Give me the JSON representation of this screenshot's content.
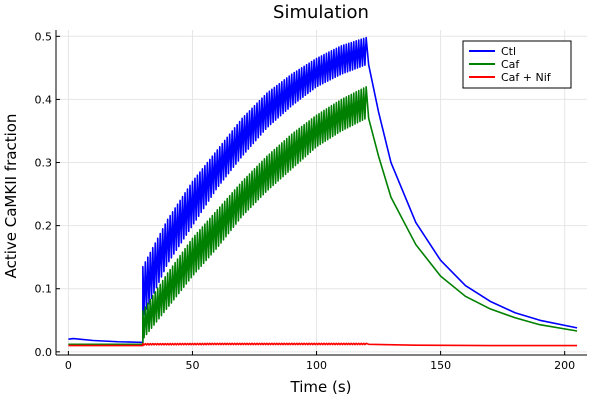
{
  "chart_data": {
    "type": "line",
    "title": "Simulation",
    "xlabel": "Time (s)",
    "ylabel": "Active CaMKII fraction",
    "xlim": [
      -5,
      209
    ],
    "ylim": [
      -0.005,
      0.51
    ],
    "xticks": [
      0,
      50,
      100,
      150,
      200
    ],
    "yticks": [
      0.0,
      0.1,
      0.2,
      0.3,
      0.4,
      0.5
    ],
    "ytick_labels": [
      "0.0",
      "0.1",
      "0.2",
      "0.3",
      "0.4",
      "0.5"
    ],
    "grid": true,
    "legend_position": "top-right",
    "series": [
      {
        "name": "Ctl",
        "color": "#0000ff",
        "baseline": [
          [
            0,
            0.02
          ],
          [
            2,
            0.021
          ],
          [
            10,
            0.018
          ],
          [
            20,
            0.016
          ],
          [
            30,
            0.015
          ]
        ],
        "pulse_window": [
          30,
          120
        ],
        "pulse_upper": [
          [
            30,
            0.135
          ],
          [
            40,
            0.21
          ],
          [
            50,
            0.27
          ],
          [
            60,
            0.32
          ],
          [
            70,
            0.37
          ],
          [
            80,
            0.41
          ],
          [
            90,
            0.44
          ],
          [
            100,
            0.465
          ],
          [
            110,
            0.485
          ],
          [
            120,
            0.498
          ]
        ],
        "pulse_lower": [
          [
            30,
            0.055
          ],
          [
            40,
            0.14
          ],
          [
            50,
            0.2
          ],
          [
            60,
            0.26
          ],
          [
            70,
            0.31
          ],
          [
            80,
            0.355
          ],
          [
            90,
            0.39
          ],
          [
            100,
            0.42
          ],
          [
            110,
            0.44
          ],
          [
            120,
            0.455
          ]
        ],
        "decay": [
          [
            121,
            0.455
          ],
          [
            125,
            0.38
          ],
          [
            130,
            0.3
          ],
          [
            140,
            0.205
          ],
          [
            150,
            0.145
          ],
          [
            160,
            0.105
          ],
          [
            170,
            0.08
          ],
          [
            180,
            0.062
          ],
          [
            190,
            0.05
          ],
          [
            205,
            0.038
          ]
        ]
      },
      {
        "name": "Caf",
        "color": "#008000",
        "baseline": [
          [
            0,
            0.012
          ],
          [
            10,
            0.012
          ],
          [
            20,
            0.012
          ],
          [
            30,
            0.012
          ]
        ],
        "pulse_window": [
          30,
          120
        ],
        "pulse_upper": [
          [
            30,
            0.065
          ],
          [
            40,
            0.125
          ],
          [
            50,
            0.18
          ],
          [
            60,
            0.225
          ],
          [
            70,
            0.27
          ],
          [
            80,
            0.31
          ],
          [
            90,
            0.345
          ],
          [
            100,
            0.375
          ],
          [
            110,
            0.4
          ],
          [
            120,
            0.42
          ]
        ],
        "pulse_lower": [
          [
            30,
            0.02
          ],
          [
            40,
            0.07
          ],
          [
            50,
            0.12
          ],
          [
            60,
            0.165
          ],
          [
            70,
            0.215
          ],
          [
            80,
            0.255
          ],
          [
            90,
            0.29
          ],
          [
            100,
            0.325
          ],
          [
            110,
            0.35
          ],
          [
            120,
            0.37
          ]
        ],
        "decay": [
          [
            121,
            0.37
          ],
          [
            125,
            0.31
          ],
          [
            130,
            0.245
          ],
          [
            140,
            0.17
          ],
          [
            150,
            0.12
          ],
          [
            160,
            0.088
          ],
          [
            170,
            0.068
          ],
          [
            180,
            0.054
          ],
          [
            190,
            0.043
          ],
          [
            205,
            0.033
          ]
        ]
      },
      {
        "name": "Caf + Nif",
        "color": "#ff0000",
        "baseline": [
          [
            0,
            0.01
          ],
          [
            10,
            0.01
          ],
          [
            20,
            0.01
          ],
          [
            30,
            0.01
          ]
        ],
        "pulse_window": [
          30,
          120
        ],
        "pulse_upper": [
          [
            30,
            0.013
          ],
          [
            60,
            0.0135
          ],
          [
            90,
            0.0135
          ],
          [
            120,
            0.0135
          ]
        ],
        "pulse_lower": [
          [
            30,
            0.011
          ],
          [
            60,
            0.0115
          ],
          [
            90,
            0.0115
          ],
          [
            120,
            0.0115
          ]
        ],
        "decay": [
          [
            121,
            0.012
          ],
          [
            140,
            0.0105
          ],
          [
            170,
            0.01
          ],
          [
            205,
            0.01
          ]
        ]
      }
    ]
  }
}
